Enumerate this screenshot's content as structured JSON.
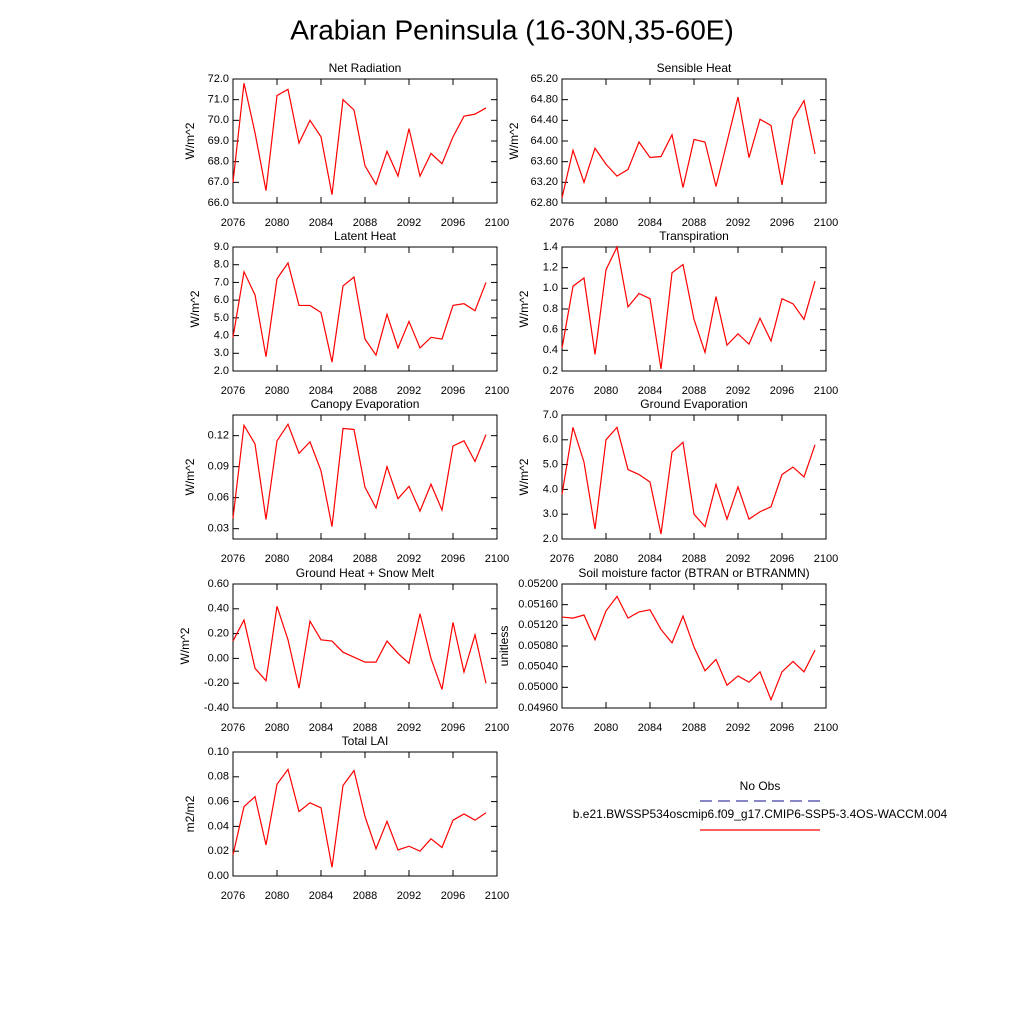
{
  "title": "Arabian Peninsula (16-30N,35-60E)",
  "legend": [
    {
      "name": "No Obs",
      "color": "#3f3fa6",
      "dash": true
    },
    {
      "name": "b.e21.BWSSP534oscmip6.f09_g17.CMIP6-SSP5-3.4OS-WACCM.004",
      "color": "#ff0000"
    }
  ],
  "chart_data": [
    {
      "type": "line",
      "title": "Net Radiation",
      "ylabel": "W/m^2",
      "color": "#ff0000",
      "x": [
        2076,
        2077,
        2078,
        2079,
        2080,
        2081,
        2082,
        2083,
        2084,
        2085,
        2086,
        2087,
        2088,
        2089,
        2090,
        2091,
        2092,
        2093,
        2094,
        2095,
        2096,
        2097,
        2098,
        2099
      ],
      "values": [
        67.0,
        71.8,
        69.4,
        66.6,
        71.2,
        71.5,
        68.9,
        70.0,
        69.2,
        66.4,
        71.0,
        70.5,
        67.8,
        66.9,
        68.5,
        67.3,
        69.6,
        67.3,
        68.4,
        67.9,
        69.2,
        70.2,
        70.3,
        70.6
      ],
      "xlim": [
        2076,
        2100
      ],
      "xticks": [
        2076,
        2080,
        2084,
        2088,
        2092,
        2096,
        2100
      ],
      "ylim": [
        66,
        72
      ],
      "yticks": [
        {
          "value": 66,
          "label": "66.0"
        },
        {
          "value": 67,
          "label": "67.0"
        },
        {
          "value": 68,
          "label": "68.0"
        },
        {
          "value": 69,
          "label": "69.0"
        },
        {
          "value": 70,
          "label": "70.0"
        },
        {
          "value": 71,
          "label": "71.0"
        },
        {
          "value": 72,
          "label": "72.0"
        }
      ]
    },
    {
      "type": "line",
      "title": "Sensible Heat",
      "ylabel": "W/m^2",
      "color": "#ff0000",
      "x": [
        2076,
        2077,
        2078,
        2079,
        2080,
        2081,
        2082,
        2083,
        2084,
        2085,
        2086,
        2087,
        2088,
        2089,
        2090,
        2091,
        2092,
        2093,
        2094,
        2095,
        2096,
        2097,
        2098,
        2099
      ],
      "values": [
        62.9,
        63.82,
        63.2,
        63.86,
        63.55,
        63.32,
        63.45,
        63.98,
        63.68,
        63.7,
        64.12,
        63.1,
        64.03,
        63.98,
        63.12,
        63.98,
        64.85,
        63.68,
        64.42,
        64.3,
        63.15,
        64.42,
        64.78,
        63.75
      ],
      "xlim": [
        2076,
        2100
      ],
      "xticks": [
        2076,
        2080,
        2084,
        2088,
        2092,
        2096,
        2100
      ],
      "ylim": [
        62.8,
        65.2
      ],
      "yticks": [
        {
          "value": 62.8,
          "label": "62.80"
        },
        {
          "value": 63.2,
          "label": "63.20"
        },
        {
          "value": 63.6,
          "label": "63.60"
        },
        {
          "value": 64.0,
          "label": "64.00"
        },
        {
          "value": 64.4,
          "label": "64.40"
        },
        {
          "value": 64.8,
          "label": "64.80"
        },
        {
          "value": 65.2,
          "label": "65.20"
        }
      ]
    },
    {
      "type": "line",
      "title": "Latent Heat",
      "ylabel": "W/m^2",
      "color": "#ff0000",
      "x": [
        2076,
        2077,
        2078,
        2079,
        2080,
        2081,
        2082,
        2083,
        2084,
        2085,
        2086,
        2087,
        2088,
        2089,
        2090,
        2091,
        2092,
        2093,
        2094,
        2095,
        2096,
        2097,
        2098,
        2099
      ],
      "values": [
        3.9,
        7.6,
        6.3,
        2.8,
        7.2,
        8.1,
        5.7,
        5.7,
        5.3,
        2.5,
        6.8,
        7.3,
        3.8,
        2.9,
        5.2,
        3.3,
        4.8,
        3.3,
        3.9,
        3.8,
        5.7,
        5.8,
        5.4,
        7.0
      ],
      "xlim": [
        2076,
        2100
      ],
      "xticks": [
        2076,
        2080,
        2084,
        2088,
        2092,
        2096,
        2100
      ],
      "ylim": [
        2,
        9
      ],
      "yticks": [
        {
          "value": 2,
          "label": "2.0"
        },
        {
          "value": 3,
          "label": "3.0"
        },
        {
          "value": 4,
          "label": "4.0"
        },
        {
          "value": 5,
          "label": "5.0"
        },
        {
          "value": 6,
          "label": "6.0"
        },
        {
          "value": 7,
          "label": "7.0"
        },
        {
          "value": 8,
          "label": "8.0"
        },
        {
          "value": 9,
          "label": "9.0"
        }
      ]
    },
    {
      "type": "line",
      "title": "Transpiration",
      "ylabel": "W/m^2",
      "color": "#ff0000",
      "x": [
        2076,
        2077,
        2078,
        2079,
        2080,
        2081,
        2082,
        2083,
        2084,
        2085,
        2086,
        2087,
        2088,
        2089,
        2090,
        2091,
        2092,
        2093,
        2094,
        2095,
        2096,
        2097,
        2098,
        2099
      ],
      "values": [
        0.42,
        1.02,
        1.1,
        0.36,
        1.18,
        1.4,
        0.82,
        0.95,
        0.9,
        0.22,
        1.15,
        1.23,
        0.7,
        0.38,
        0.92,
        0.45,
        0.56,
        0.46,
        0.71,
        0.49,
        0.9,
        0.85,
        0.7,
        1.07
      ],
      "xlim": [
        2076,
        2100
      ],
      "xticks": [
        2076,
        2080,
        2084,
        2088,
        2092,
        2096,
        2100
      ],
      "ylim": [
        0.2,
        1.4
      ],
      "yticks": [
        0.2,
        0.4,
        0.6,
        0.8,
        {
          "value": 1.0,
          "label": "1.0"
        },
        1.2,
        1.4
      ]
    },
    {
      "type": "line",
      "title": "Canopy Evaporation",
      "ylabel": "W/m^2",
      "color": "#ff0000",
      "x": [
        2076,
        2077,
        2078,
        2079,
        2080,
        2081,
        2082,
        2083,
        2084,
        2085,
        2086,
        2087,
        2088,
        2089,
        2090,
        2091,
        2092,
        2093,
        2094,
        2095,
        2096,
        2097,
        2098,
        2099
      ],
      "values": [
        0.04,
        0.13,
        0.112,
        0.039,
        0.115,
        0.131,
        0.103,
        0.114,
        0.086,
        0.032,
        0.127,
        0.126,
        0.07,
        0.05,
        0.09,
        0.059,
        0.071,
        0.047,
        0.073,
        0.048,
        0.11,
        0.115,
        0.095,
        0.121
      ],
      "xlim": [
        2076,
        2100
      ],
      "xticks": [
        2076,
        2080,
        2084,
        2088,
        2092,
        2096,
        2100
      ],
      "ylim": [
        0.02,
        0.14
      ],
      "yticks": [
        0.03,
        0.06,
        0.09,
        0.12
      ]
    },
    {
      "type": "line",
      "title": "Ground Evaporation",
      "ylabel": "W/m^2",
      "color": "#ff0000",
      "x": [
        2076,
        2077,
        2078,
        2079,
        2080,
        2081,
        2082,
        2083,
        2084,
        2085,
        2086,
        2087,
        2088,
        2089,
        2090,
        2091,
        2092,
        2093,
        2094,
        2095,
        2096,
        2097,
        2098,
        2099
      ],
      "values": [
        3.8,
        6.5,
        5.1,
        2.4,
        6.0,
        6.5,
        4.8,
        4.6,
        4.3,
        2.2,
        5.5,
        5.9,
        3.0,
        2.5,
        4.2,
        2.8,
        4.1,
        2.8,
        3.1,
        3.3,
        4.6,
        4.9,
        4.5,
        5.8
      ],
      "xlim": [
        2076,
        2100
      ],
      "xticks": [
        2076,
        2080,
        2084,
        2088,
        2092,
        2096,
        2100
      ],
      "ylim": [
        2,
        7
      ],
      "yticks": [
        {
          "value": 2,
          "label": "2.0"
        },
        {
          "value": 3,
          "label": "3.0"
        },
        {
          "value": 4,
          "label": "4.0"
        },
        {
          "value": 5,
          "label": "5.0"
        },
        {
          "value": 6,
          "label": "6.0"
        },
        {
          "value": 7,
          "label": "7.0"
        }
      ]
    },
    {
      "type": "line",
      "title": "Ground Heat + Snow Melt",
      "ylabel": "W/m^2",
      "color": "#ff0000",
      "x": [
        2076,
        2077,
        2078,
        2079,
        2080,
        2081,
        2082,
        2083,
        2084,
        2085,
        2086,
        2087,
        2088,
        2089,
        2090,
        2091,
        2092,
        2093,
        2094,
        2095,
        2096,
        2097,
        2098,
        2099
      ],
      "values": [
        0.14,
        0.31,
        -0.08,
        -0.18,
        0.42,
        0.15,
        -0.24,
        0.3,
        0.15,
        0.14,
        0.05,
        0.01,
        -0.03,
        -0.03,
        0.14,
        0.04,
        -0.04,
        0.36,
        0.0,
        -0.25,
        0.29,
        -0.11,
        0.19,
        -0.2
      ],
      "xlim": [
        2076,
        2100
      ],
      "xticks": [
        2076,
        2080,
        2084,
        2088,
        2092,
        2096,
        2100
      ],
      "ylim": [
        -0.4,
        0.6
      ],
      "yticks": [
        {
          "value": -0.4,
          "label": "-0.40"
        },
        {
          "value": -0.2,
          "label": "-0.20"
        },
        {
          "value": 0,
          "label": "0.00"
        },
        {
          "value": 0.2,
          "label": "0.20"
        },
        {
          "value": 0.4,
          "label": "0.40"
        },
        {
          "value": 0.6,
          "label": "0.60"
        }
      ]
    },
    {
      "type": "line",
      "title": "Soil moisture factor (BTRAN or BTRANMN)",
      "ylabel": "unitless",
      "color": "#ff0000",
      "x": [
        2076,
        2077,
        2078,
        2079,
        2080,
        2081,
        2082,
        2083,
        2084,
        2085,
        2086,
        2087,
        2088,
        2089,
        2090,
        2091,
        2092,
        2093,
        2094,
        2095,
        2096,
        2097,
        2098,
        2099
      ],
      "values": [
        0.05136,
        0.05134,
        0.0514,
        0.05092,
        0.05148,
        0.05176,
        0.05134,
        0.05146,
        0.0515,
        0.05112,
        0.05086,
        0.05138,
        0.05078,
        0.05032,
        0.05054,
        0.05004,
        0.05022,
        0.0501,
        0.0503,
        0.04976,
        0.0503,
        0.0505,
        0.0503,
        0.05072
      ],
      "xlim": [
        2076,
        2100
      ],
      "xticks": [
        2076,
        2080,
        2084,
        2088,
        2092,
        2096,
        2100
      ],
      "ylim": [
        0.0496,
        0.052
      ],
      "yticks": [
        {
          "value": 0.0496,
          "label": "0.04960"
        },
        {
          "value": 0.05,
          "label": "0.05000"
        },
        {
          "value": 0.0504,
          "label": "0.05040"
        },
        {
          "value": 0.0508,
          "label": "0.05080"
        },
        {
          "value": 0.0512,
          "label": "0.05120"
        },
        {
          "value": 0.0516,
          "label": "0.05160"
        },
        {
          "value": 0.052,
          "label": "0.05200"
        }
      ]
    },
    {
      "type": "line",
      "title": "Total LAI",
      "ylabel": "m2/m2",
      "color": "#ff0000",
      "x": [
        2076,
        2077,
        2078,
        2079,
        2080,
        2081,
        2082,
        2083,
        2084,
        2085,
        2086,
        2087,
        2088,
        2089,
        2090,
        2091,
        2092,
        2093,
        2094,
        2095,
        2096,
        2097,
        2098,
        2099
      ],
      "values": [
        0.017,
        0.056,
        0.064,
        0.025,
        0.074,
        0.086,
        0.052,
        0.059,
        0.055,
        0.007,
        0.073,
        0.085,
        0.048,
        0.022,
        0.044,
        0.021,
        0.024,
        0.02,
        0.03,
        0.023,
        0.045,
        0.05,
        0.045,
        0.051
      ],
      "xlim": [
        2076,
        2100
      ],
      "xticks": [
        2076,
        2080,
        2084,
        2088,
        2092,
        2096,
        2100
      ],
      "ylim": [
        0,
        0.1
      ],
      "yticks": [
        {
          "value": 0,
          "label": "0.00"
        },
        0.02,
        0.04,
        0.06,
        0.08,
        {
          "value": 0.1,
          "label": "0.10"
        }
      ]
    }
  ]
}
